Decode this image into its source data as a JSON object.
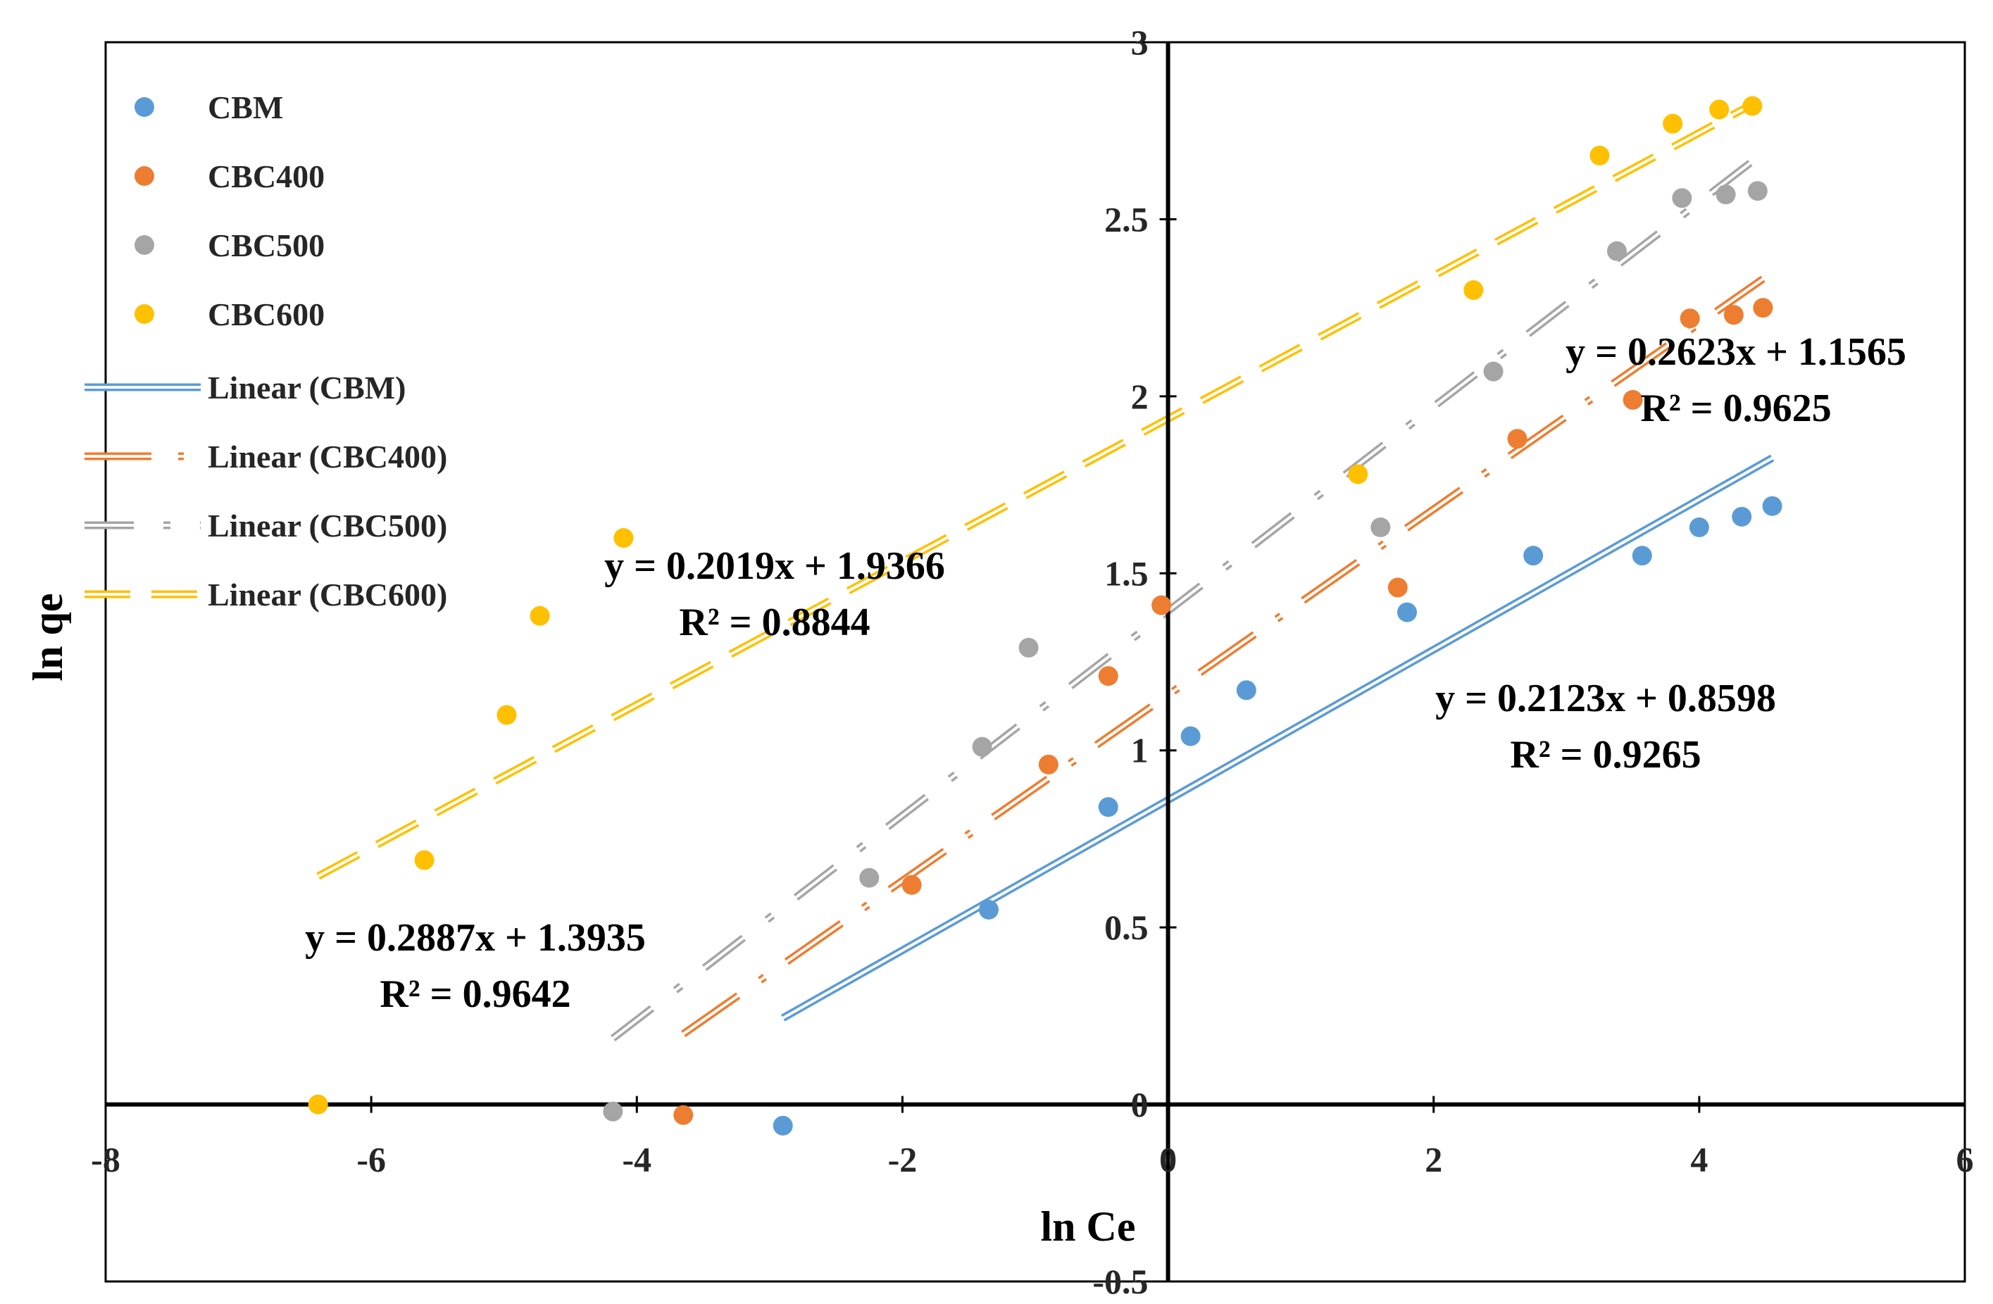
{
  "chart_data": {
    "type": "scatter",
    "title": "",
    "xlabel": "ln Ce",
    "ylabel": "ln qe",
    "xlim": [
      -8,
      6
    ],
    "ylim": [
      -0.5,
      3
    ],
    "x_ticks": [
      "-8",
      "-6",
      "-4",
      "-2",
      "0",
      "2",
      "4",
      "6"
    ],
    "y_ticks": [
      "-0.5",
      "0",
      "0.5",
      "1",
      "1.5",
      "2",
      "2.5",
      "3"
    ],
    "grid": false,
    "legend_position": "top-left",
    "series": [
      {
        "name": "CBM",
        "color": "#5B9BD5",
        "points": [
          {
            "x": -2.9,
            "y": -0.06
          },
          {
            "x": -1.35,
            "y": 0.55
          },
          {
            "x": -0.45,
            "y": 0.84
          },
          {
            "x": 0.17,
            "y": 1.04
          },
          {
            "x": 0.59,
            "y": 1.17
          },
          {
            "x": 1.8,
            "y": 1.39
          },
          {
            "x": 2.75,
            "y": 1.55
          },
          {
            "x": 3.57,
            "y": 1.55
          },
          {
            "x": 4.0,
            "y": 1.63
          },
          {
            "x": 4.32,
            "y": 1.66
          },
          {
            "x": 4.55,
            "y": 1.69
          }
        ]
      },
      {
        "name": "CBC400",
        "color": "#ED7D31",
        "points": [
          {
            "x": -3.65,
            "y": -0.03
          },
          {
            "x": -1.93,
            "y": 0.62
          },
          {
            "x": -0.9,
            "y": 0.96
          },
          {
            "x": -0.45,
            "y": 1.21
          },
          {
            "x": -0.05,
            "y": 1.41
          },
          {
            "x": 1.73,
            "y": 1.46
          },
          {
            "x": 2.63,
            "y": 1.88
          },
          {
            "x": 3.5,
            "y": 1.99
          },
          {
            "x": 3.93,
            "y": 2.22
          },
          {
            "x": 4.26,
            "y": 2.23
          },
          {
            "x": 4.48,
            "y": 2.25
          }
        ]
      },
      {
        "name": "CBC500",
        "color": "#A5A5A5",
        "points": [
          {
            "x": -4.18,
            "y": -0.02
          },
          {
            "x": -2.25,
            "y": 0.64
          },
          {
            "x": -1.4,
            "y": 1.01
          },
          {
            "x": -1.05,
            "y": 1.29
          },
          {
            "x": 1.6,
            "y": 1.63
          },
          {
            "x": 2.45,
            "y": 2.07
          },
          {
            "x": 3.38,
            "y": 2.41
          },
          {
            "x": 3.87,
            "y": 2.56
          },
          {
            "x": 4.2,
            "y": 2.57
          },
          {
            "x": 4.44,
            "y": 2.58
          }
        ]
      },
      {
        "name": "CBC600",
        "color": "#FFC000",
        "points": [
          {
            "x": -6.4,
            "y": 0.0
          },
          {
            "x": -5.6,
            "y": 0.69
          },
          {
            "x": -4.98,
            "y": 1.1
          },
          {
            "x": -4.73,
            "y": 1.38
          },
          {
            "x": -4.1,
            "y": 1.6
          },
          {
            "x": 1.43,
            "y": 1.78
          },
          {
            "x": 2.3,
            "y": 2.3
          },
          {
            "x": 3.25,
            "y": 2.68
          },
          {
            "x": 3.8,
            "y": 2.77
          },
          {
            "x": 4.15,
            "y": 2.81
          },
          {
            "x": 4.4,
            "y": 2.82
          }
        ]
      }
    ],
    "trendlines": [
      {
        "name": "Linear (CBM)",
        "series": "CBM",
        "color": "#5B9BD5",
        "style": "solid",
        "x_range": [
          -2.9,
          4.55
        ],
        "slope": 0.2123,
        "intercept": 0.8598,
        "equation": "y = 0.2123x + 0.8598",
        "r2": "R² = 0.9265"
      },
      {
        "name": "Linear (CBC400)",
        "series": "CBC400",
        "color": "#ED7D31",
        "style": "longdash-dot",
        "x_range": [
          -3.65,
          4.48
        ],
        "slope": 0.2623,
        "intercept": 1.1565,
        "equation": "y = 0.2623x + 1.1565",
        "r2": "R² = 0.9625"
      },
      {
        "name": "Linear (CBC500)",
        "series": "CBC500",
        "color": "#A5A5A5",
        "style": "dash-dot",
        "x_range": [
          -4.18,
          4.44
        ],
        "slope": 0.2887,
        "intercept": 1.3935,
        "equation": "y = 0.2887x + 1.3935",
        "r2": "R² = 0.9642"
      },
      {
        "name": "Linear (CBC600)",
        "series": "CBC600",
        "color": "#FFC000",
        "style": "dash",
        "x_range": [
          -6.4,
          4.4
        ],
        "slope": 0.2019,
        "intercept": 1.9366,
        "equation": "y = 0.2019x + 1.9366",
        "r2": "R² = 0.8844"
      }
    ]
  }
}
